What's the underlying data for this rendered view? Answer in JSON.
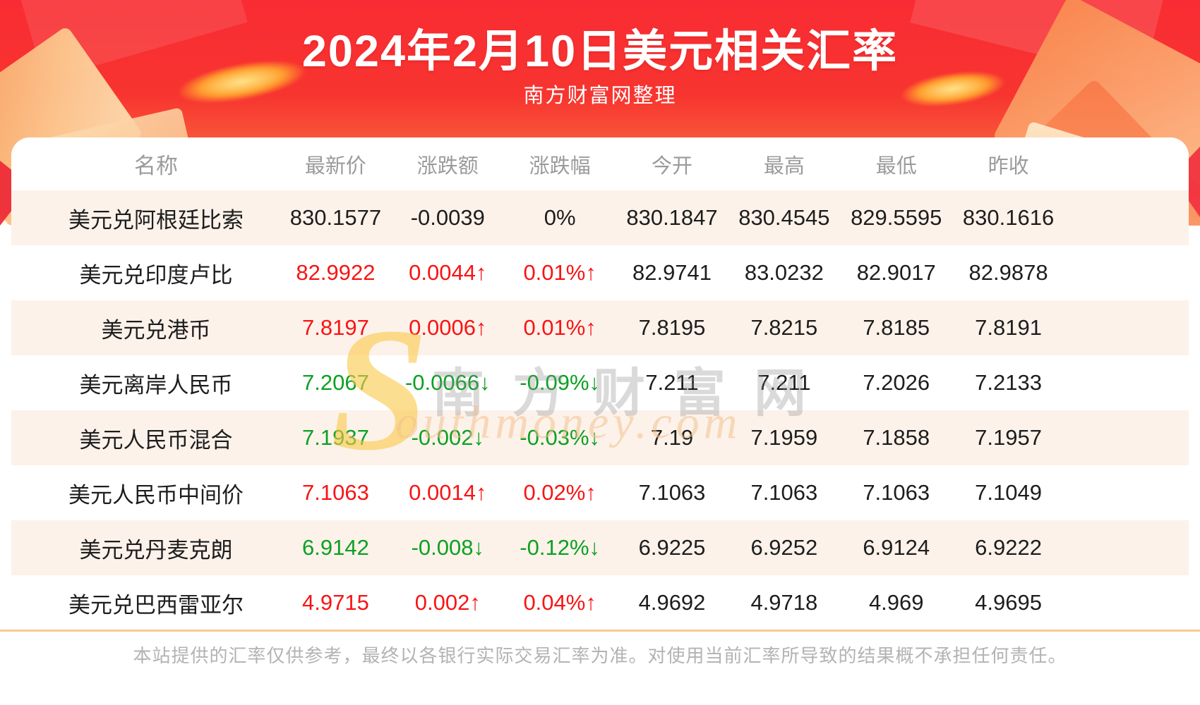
{
  "header": {
    "title": "2024年2月10日美元相关汇率",
    "subtitle": "南方财富网整理"
  },
  "table": {
    "columns": [
      "名称",
      "最新价",
      "涨跌额",
      "涨跌幅",
      "今开",
      "最高",
      "最低",
      "昨收"
    ],
    "rows": [
      {
        "name": "美元兑阿根廷比索",
        "latest": "830.1577",
        "change": "-0.0039",
        "pct": "0%",
        "open": "830.1847",
        "high": "830.4545",
        "low": "829.5595",
        "prev": "830.1616",
        "trend": "flat"
      },
      {
        "name": "美元兑印度卢比",
        "latest": "82.9922",
        "change": "0.0044↑",
        "pct": "0.01%↑",
        "open": "82.9741",
        "high": "83.0232",
        "low": "82.9017",
        "prev": "82.9878",
        "trend": "up"
      },
      {
        "name": "美元兑港币",
        "latest": "7.8197",
        "change": "0.0006↑",
        "pct": "0.01%↑",
        "open": "7.8195",
        "high": "7.8215",
        "low": "7.8185",
        "prev": "7.8191",
        "trend": "up"
      },
      {
        "name": "美元离岸人民币",
        "latest": "7.2067",
        "change": "-0.0066↓",
        "pct": "-0.09%↓",
        "open": "7.211",
        "high": "7.211",
        "low": "7.2026",
        "prev": "7.2133",
        "trend": "down"
      },
      {
        "name": "美元人民币混合",
        "latest": "7.1937",
        "change": "-0.002↓",
        "pct": "-0.03%↓",
        "open": "7.19",
        "high": "7.1959",
        "low": "7.1858",
        "prev": "7.1957",
        "trend": "down"
      },
      {
        "name": "美元人民币中间价",
        "latest": "7.1063",
        "change": "0.0014↑",
        "pct": "0.02%↑",
        "open": "7.1063",
        "high": "7.1063",
        "low": "7.1063",
        "prev": "7.1049",
        "trend": "up"
      },
      {
        "name": "美元兑丹麦克朗",
        "latest": "6.9142",
        "change": "-0.008↓",
        "pct": "-0.12%↓",
        "open": "6.9225",
        "high": "6.9252",
        "low": "6.9124",
        "prev": "6.9222",
        "trend": "down"
      },
      {
        "name": "美元兑巴西雷亚尔",
        "latest": "4.9715",
        "change": "0.002↑",
        "pct": "0.04%↑",
        "open": "4.9692",
        "high": "4.9718",
        "low": "4.969",
        "prev": "4.9695",
        "trend": "up"
      }
    ]
  },
  "watermark": {
    "swoosh": "S",
    "cn": "南方财富网",
    "en": "outhmoney.com"
  },
  "footer": {
    "disclaimer": "本站提供的汇率仅供参考，最终以各银行实际交易汇率为准。对使用当前汇率所导致的结果概不承担任何责任。"
  },
  "theme": {
    "banner_red": "#f92c33",
    "up_color": "#f81414",
    "down_color": "#0ba122",
    "stripe_color": "#fcf2ea",
    "divider_color": "#f8ca92",
    "header_gray": "#9b9b9b",
    "footer_gray": "#b3b3b3",
    "text_dark": "#1d1d1d"
  },
  "chart_data": {
    "type": "table",
    "title": "2024年2月10日美元相关汇率",
    "subtitle": "南方财富网整理",
    "columns": [
      "名称",
      "最新价",
      "涨跌额",
      "涨跌幅",
      "今开",
      "最高",
      "最低",
      "昨收"
    ],
    "rows": [
      [
        "美元兑阿根廷比索",
        "830.1577",
        "-0.0039",
        "0%",
        "830.1847",
        "830.4545",
        "829.5595",
        "830.1616"
      ],
      [
        "美元兑印度卢比",
        "82.9922",
        "0.0044↑",
        "0.01%↑",
        "82.9741",
        "83.0232",
        "82.9017",
        "82.9878"
      ],
      [
        "美元兑港币",
        "7.8197",
        "0.0006↑",
        "0.01%↑",
        "7.8195",
        "7.8215",
        "7.8185",
        "7.8191"
      ],
      [
        "美元离岸人民币",
        "7.2067",
        "-0.0066↓",
        "-0.09%↓",
        "7.211",
        "7.211",
        "7.2026",
        "7.2133"
      ],
      [
        "美元人民币混合",
        "7.1937",
        "-0.002↓",
        "-0.03%↓",
        "7.19",
        "7.1959",
        "7.1858",
        "7.1957"
      ],
      [
        "美元人民币中间价",
        "7.1063",
        "0.0014↑",
        "0.02%↑",
        "7.1063",
        "7.1063",
        "7.1063",
        "7.1049"
      ],
      [
        "美元兑丹麦克朗",
        "6.9142",
        "-0.008↓",
        "-0.12%↓",
        "6.9225",
        "6.9252",
        "6.9124",
        "6.9222"
      ],
      [
        "美元兑巴西雷亚尔",
        "4.9715",
        "0.002↑",
        "0.04%↑",
        "4.9692",
        "4.9718",
        "4.969",
        "4.9695"
      ]
    ]
  }
}
